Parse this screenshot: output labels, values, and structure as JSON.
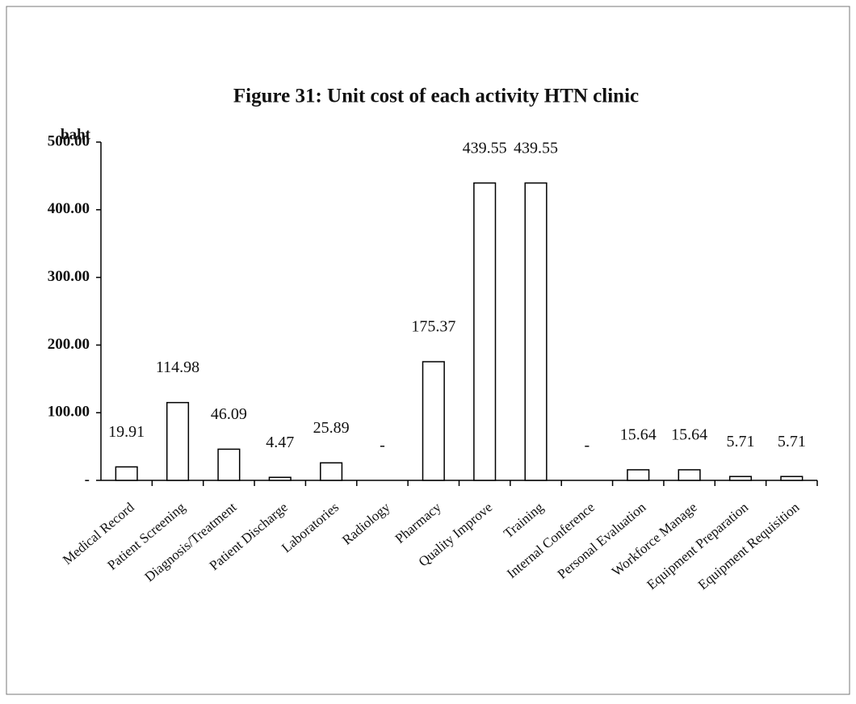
{
  "chart_data": {
    "type": "bar",
    "title": "Figure 31: Unit cost of each activity HTN clinic",
    "y_label": "baht",
    "categories": [
      "Medical Record",
      "Patient Screening",
      "Diagnosis/Treatment",
      "Patient Discharge",
      "Laboratories",
      "Radiology",
      "Pharmacy",
      "Quality Improve",
      "Training",
      "Internal Conference",
      "Personal Evaluation",
      "Workforce Manage",
      "Equipment Preparation",
      "Equipment Requisition"
    ],
    "values": [
      19.91,
      114.98,
      46.09,
      4.47,
      25.89,
      0,
      175.37,
      439.55,
      439.55,
      0,
      15.64,
      15.64,
      5.71,
      5.71
    ],
    "value_labels": [
      "19.91",
      "114.98",
      "46.09",
      "4.47",
      "25.89",
      "-",
      "175.37",
      "439.55",
      "439.55",
      "-",
      "15.64",
      "15.64",
      "5.71",
      "5.71"
    ],
    "color": "#ffffff",
    "ylim": [
      0,
      500
    ],
    "yticks": [
      {
        "value": 0,
        "label": "-"
      },
      {
        "value": 100,
        "label": "100.00"
      },
      {
        "value": 200,
        "label": "200.00"
      },
      {
        "value": 300,
        "label": "300.00"
      },
      {
        "value": 400,
        "label": "400.00"
      },
      {
        "value": 500,
        "label": "500.00"
      }
    ],
    "grid": false
  }
}
